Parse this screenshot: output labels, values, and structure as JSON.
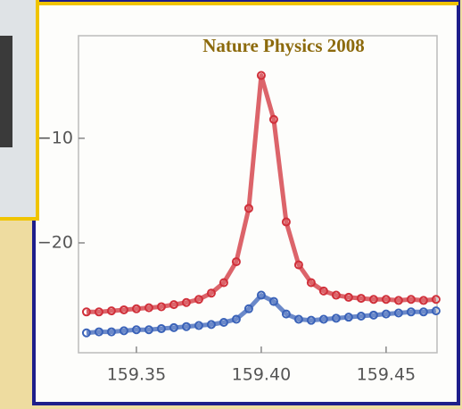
{
  "chart_data": {
    "type": "scatter",
    "title": "Nature Physics 2008",
    "x": [
      159.33,
      159.335,
      159.34,
      159.345,
      159.35,
      159.355,
      159.36,
      159.365,
      159.37,
      159.375,
      159.38,
      159.385,
      159.39,
      159.395,
      159.4,
      159.405,
      159.41,
      159.415,
      159.42,
      159.425,
      159.43,
      159.435,
      159.44,
      159.445,
      159.45,
      159.455,
      159.46,
      159.465,
      159.47
    ],
    "series": [
      {
        "color": "#d0303a",
        "values": [
          -26.6,
          -26.6,
          -26.5,
          -26.4,
          -26.3,
          -26.2,
          -26.1,
          -25.9,
          -25.7,
          -25.4,
          -24.8,
          -23.8,
          -21.8,
          -16.7,
          -4.0,
          -8.2,
          -18.0,
          -22.1,
          -23.8,
          -24.6,
          -25.0,
          -25.2,
          -25.3,
          -25.4,
          -25.4,
          -25.5,
          -25.4,
          -25.5,
          -25.4
        ]
      },
      {
        "color": "#3a62b8",
        "values": [
          -28.6,
          -28.5,
          -28.5,
          -28.4,
          -28.3,
          -28.3,
          -28.2,
          -28.1,
          -28.0,
          -27.9,
          -27.8,
          -27.6,
          -27.3,
          -26.3,
          -25.0,
          -25.6,
          -26.8,
          -27.3,
          -27.4,
          -27.3,
          -27.2,
          -27.1,
          -27.0,
          -26.9,
          -26.8,
          -26.7,
          -26.6,
          -26.6,
          -26.5
        ]
      }
    ],
    "xlim": [
      159.3268,
      159.4704
    ],
    "ylim": [
      -30.5,
      -0.2
    ],
    "xticks": [
      159.35,
      {
        "value": 159.4,
        "label": "159.40"
      },
      159.45
    ],
    "yticks": [
      {
        "value": -10,
        "label": "−10"
      },
      {
        "value": -20,
        "label": "−20"
      }
    ]
  }
}
